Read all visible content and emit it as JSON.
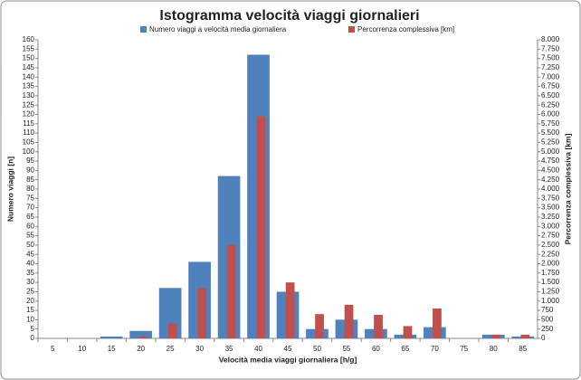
{
  "chart_data": {
    "type": "bar",
    "title": "Istogramma velocità viaggi giornalieri",
    "x_label": "Velocità media viaggi giornaliera [h/g]",
    "y_label": "Numero viaggi [n]",
    "y2_label": "Percorrenza complessiva [km]",
    "categories": [
      "5",
      "10",
      "15",
      "20",
      "25",
      "30",
      "35",
      "40",
      "45",
      "50",
      "55",
      "60",
      "65",
      "70",
      "75",
      "80",
      "85"
    ],
    "series": [
      {
        "name": "Numero viaggi a velocità media giornaliera",
        "color": "#4f81bd",
        "values": [
          0,
          0,
          1,
          4,
          27,
          41,
          87,
          152,
          25,
          5,
          10,
          5,
          2,
          6,
          0,
          2,
          1
        ]
      },
      {
        "name": "Percorrenza complessiva [km]",
        "color": "#c0504d",
        "axis": "y2",
        "values": [
          0,
          0,
          0,
          50,
          400,
          1350,
          2500,
          5950,
          1500,
          650,
          900,
          630,
          330,
          800,
          0,
          100,
          100
        ]
      }
    ],
    "ylim": [
      0,
      160
    ],
    "yticks": [
      0,
      5,
      10,
      15,
      20,
      25,
      30,
      35,
      40,
      45,
      50,
      55,
      60,
      65,
      70,
      75,
      80,
      85,
      90,
      95,
      100,
      105,
      110,
      115,
      120,
      125,
      130,
      135,
      140,
      145,
      150,
      155,
      160
    ],
    "y2lim": [
      0,
      8000
    ],
    "y2ticks": [
      0,
      250,
      500,
      750,
      {
        "value": 1000,
        "label": "1.000"
      },
      {
        "value": 1250,
        "label": "1.250"
      },
      {
        "value": 1500,
        "label": "1.500"
      },
      {
        "value": 1750,
        "label": "1.750"
      },
      {
        "value": 2000,
        "label": "2.000"
      },
      {
        "value": 2250,
        "label": "2.250"
      },
      {
        "value": 2500,
        "label": "2.500"
      },
      {
        "value": 2750,
        "label": "2.750"
      },
      {
        "value": 3000,
        "label": "3.000"
      },
      {
        "value": 3250,
        "label": "3.250"
      },
      {
        "value": 3500,
        "label": "3.500"
      },
      {
        "value": 3750,
        "label": "3.750"
      },
      {
        "value": 4000,
        "label": "4.000"
      },
      {
        "value": 4250,
        "label": "4.250"
      },
      {
        "value": 4500,
        "label": "4.500"
      },
      {
        "value": 4750,
        "label": "4.750"
      },
      {
        "value": 5000,
        "label": "5.000"
      },
      {
        "value": 5250,
        "label": "5.250"
      },
      {
        "value": 5500,
        "label": "5.500"
      },
      {
        "value": 5750,
        "label": "5.750"
      },
      {
        "value": 6000,
        "label": "6.000"
      },
      {
        "value": 6250,
        "label": "6.250"
      },
      {
        "value": 6500,
        "label": "6.500"
      },
      {
        "value": 6750,
        "label": "6.750"
      },
      {
        "value": 7000,
        "label": "7.000"
      },
      {
        "value": 7250,
        "label": "7.250"
      },
      {
        "value": 7500,
        "label": "7.500"
      },
      {
        "value": 7750,
        "label": "7.750"
      },
      {
        "value": 8000,
        "label": "8.000"
      }
    ],
    "grid": false
  }
}
